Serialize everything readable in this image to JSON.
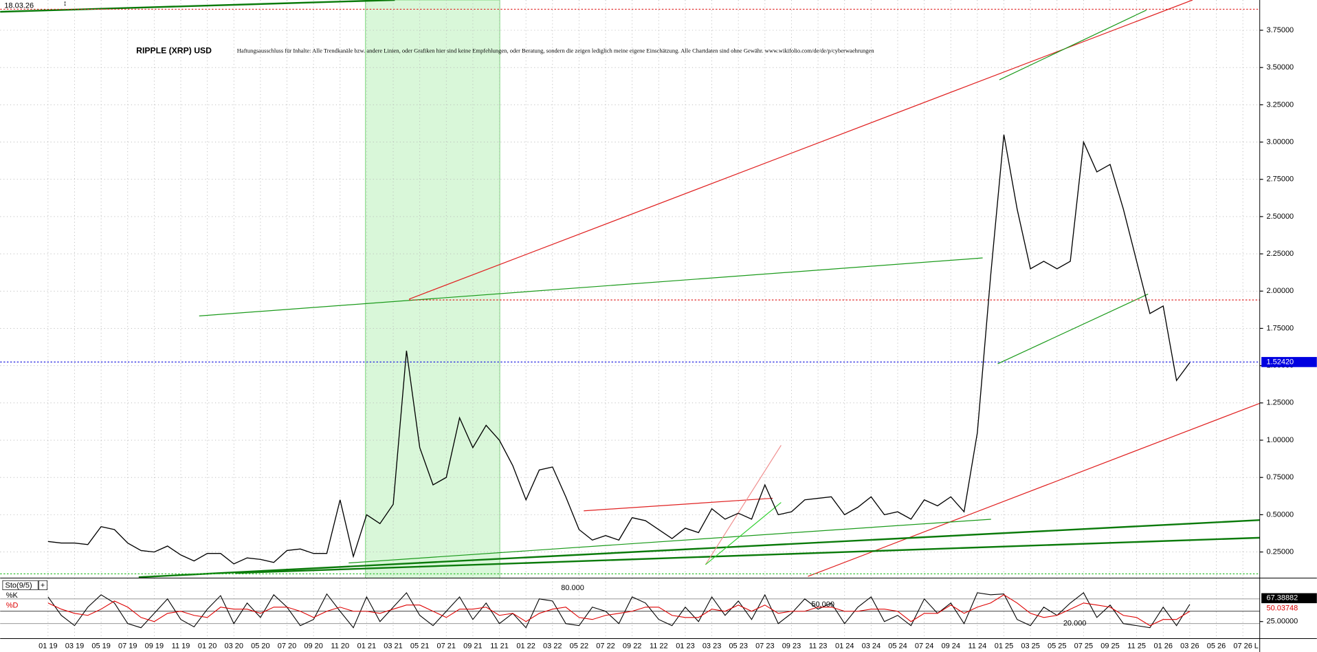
{
  "chart_data": [
    {
      "type": "line",
      "title": "RIPPLE (XRP) USD",
      "subtitle": "Haftungsausschluss für Inhalte: Alle Trendkanäle bzw. andere Linien, oder Grafiken hier sind keine Empfehlungen, oder Beratung, sondern die zeigen lediglich meine eigene Einschätzung. Alle Chartdaten sind ohne Gewähr. www.wikifolio.com/de/de/p/cyberwaehrungen",
      "date_label": "18.03.26",
      "color": "#000000",
      "x": [
        "01 19",
        "02 19",
        "03 19",
        "04 19",
        "05 19",
        "06 19",
        "07 19",
        "08 19",
        "09 19",
        "10 19",
        "11 19",
        "12 19",
        "01 20",
        "02 20",
        "03 20",
        "04 20",
        "05 20",
        "06 20",
        "07 20",
        "08 20",
        "09 20",
        "10 20",
        "11 20",
        "12 20",
        "01 21",
        "02 21",
        "03 21",
        "04 21",
        "05 21",
        "06 21",
        "07 21",
        "08 21",
        "09 21",
        "10 21",
        "11 21",
        "12 21",
        "01 22",
        "02 22",
        "03 22",
        "04 22",
        "05 22",
        "06 22",
        "07 22",
        "08 22",
        "09 22",
        "10 22",
        "11 22",
        "12 22",
        "01 23",
        "02 23",
        "03 23",
        "04 23",
        "05 23",
        "06 23",
        "07 23",
        "08 23",
        "09 23",
        "10 23",
        "11 23",
        "12 23",
        "01 24",
        "02 24",
        "03 24",
        "04 24",
        "05 24",
        "06 24",
        "07 24",
        "08 24",
        "09 24",
        "10 24",
        "11 24",
        "12 24",
        "01 25",
        "02 25",
        "03 25",
        "04 25",
        "05 25",
        "06 25",
        "07 25",
        "08 25",
        "09 25",
        "10 25",
        "11 25",
        "12 25",
        "01 26",
        "02 26",
        "03 26"
      ],
      "values": [
        0.32,
        0.31,
        0.31,
        0.3,
        0.42,
        0.4,
        0.31,
        0.26,
        0.25,
        0.29,
        0.23,
        0.19,
        0.24,
        0.24,
        0.17,
        0.21,
        0.2,
        0.18,
        0.26,
        0.27,
        0.24,
        0.24,
        0.6,
        0.22,
        0.5,
        0.44,
        0.57,
        1.6,
        0.95,
        0.7,
        0.75,
        1.15,
        0.95,
        1.1,
        1.0,
        0.83,
        0.6,
        0.8,
        0.82,
        0.62,
        0.4,
        0.33,
        0.36,
        0.33,
        0.48,
        0.46,
        0.4,
        0.34,
        0.41,
        0.38,
        0.54,
        0.47,
        0.51,
        0.47,
        0.7,
        0.5,
        0.52,
        0.6,
        0.61,
        0.62,
        0.5,
        0.55,
        0.62,
        0.5,
        0.52,
        0.47,
        0.6,
        0.56,
        0.62,
        0.52,
        1.05,
        2.1,
        3.05,
        2.55,
        2.15,
        2.2,
        2.15,
        2.2,
        3.0,
        2.8,
        2.85,
        2.55,
        2.2,
        1.85,
        1.9,
        1.4,
        1.52
      ],
      "ylim": [
        0.075,
        3.953
      ],
      "yticks": [
        {
          "value": 0.25,
          "label": "0.25000"
        },
        {
          "value": 0.5,
          "label": "0.50000"
        },
        {
          "value": 0.75,
          "label": "0.75000"
        },
        {
          "value": 1.0,
          "label": "1.00000"
        },
        {
          "value": 1.25,
          "label": "1.25000"
        },
        {
          "value": 1.5,
          "label": "1.50000"
        },
        {
          "value": 1.75,
          "label": "1.75000"
        },
        {
          "value": 2.0,
          "label": "2.00000"
        },
        {
          "value": 2.25,
          "label": "2.25000"
        },
        {
          "value": 2.5,
          "label": "2.50000"
        },
        {
          "value": 2.75,
          "label": "2.75000"
        },
        {
          "value": 3.0,
          "label": "3.00000"
        },
        {
          "value": 3.25,
          "label": "3.25000"
        },
        {
          "value": 3.5,
          "label": "3.50000"
        },
        {
          "value": 3.75,
          "label": "3.75000"
        }
      ],
      "xticks": [
        "01 19",
        "03 19",
        "05 19",
        "07 19",
        "09 19",
        "11 19",
        "01 20",
        "03 20",
        "05 20",
        "07 20",
        "09 20",
        "11 20",
        "01 21",
        "03 21",
        "05 21",
        "07 21",
        "09 21",
        "11 21",
        "01 22",
        "03 22",
        "05 22",
        "07 22",
        "09 22",
        "11 22",
        "01 23",
        "03 23",
        "05 23",
        "07 23",
        "09 23",
        "11 23",
        "01 24",
        "03 24",
        "05 24",
        "07 24",
        "09 24",
        "11 24",
        "01 25",
        "03 25",
        "05 25",
        "07 25",
        "09 25",
        "11 25",
        "01 26",
        "03 26",
        "05 26",
        "07 26"
      ],
      "x_end_label": "L",
      "last_price": {
        "value": 1.5242,
        "label": "1.52420"
      },
      "grid": true
    },
    {
      "type": "line",
      "title": "Sto(9/5)",
      "series": [
        {
          "name": "%K",
          "color": "#000000",
          "values": [
            85,
            40,
            15,
            60,
            90,
            70,
            20,
            10,
            45,
            80,
            30,
            12,
            55,
            88,
            20,
            70,
            35,
            90,
            60,
            15,
            30,
            92,
            50,
            10,
            85,
            25,
            60,
            95,
            40,
            15,
            50,
            85,
            30,
            70,
            20,
            45,
            10,
            80,
            75,
            20,
            15,
            60,
            50,
            20,
            85,
            70,
            30,
            15,
            60,
            25,
            85,
            40,
            75,
            30,
            90,
            20,
            45,
            80,
            55,
            70,
            20,
            60,
            85,
            25,
            40,
            15,
            80,
            45,
            70,
            20,
            95,
            90,
            92,
            30,
            15,
            60,
            40,
            70,
            95,
            35,
            65,
            20,
            15,
            10,
            60,
            15,
            67
          ]
        },
        {
          "name": "%D",
          "color": "#dd0000",
          "values": [
            70,
            55,
            45,
            40,
            55,
            75,
            60,
            35,
            25,
            45,
            50,
            40,
            35,
            60,
            55,
            55,
            45,
            60,
            60,
            50,
            35,
            50,
            60,
            50,
            50,
            45,
            55,
            65,
            65,
            50,
            35,
            55,
            55,
            60,
            40,
            45,
            25,
            45,
            55,
            60,
            35,
            30,
            40,
            45,
            50,
            60,
            60,
            40,
            35,
            35,
            55,
            50,
            65,
            50,
            65,
            45,
            50,
            50,
            60,
            60,
            50,
            50,
            55,
            55,
            50,
            25,
            45,
            45,
            65,
            45,
            60,
            70,
            90,
            70,
            45,
            35,
            40,
            55,
            70,
            65,
            60,
            40,
            35,
            15,
            30,
            30,
            50
          ]
        }
      ],
      "last_values": [
        67.38882,
        50.03748
      ],
      "ylim": [
        0,
        100
      ],
      "levels": [
        {
          "value": 80,
          "label": "80.000"
        },
        {
          "value": 50,
          "label": "50.000"
        },
        {
          "value": 20,
          "label": "20.000"
        }
      ],
      "yticks": [
        {
          "value": 25,
          "label": "25.00000"
        }
      ]
    }
  ]
}
